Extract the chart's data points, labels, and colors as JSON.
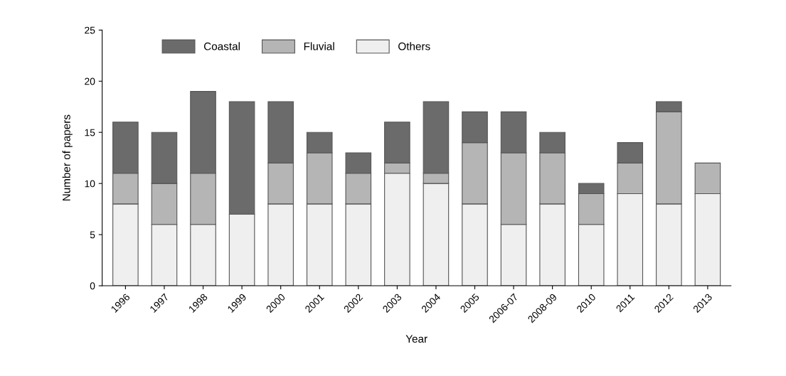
{
  "chart_data": {
    "type": "bar",
    "stacked": true,
    "xlabel": "Year",
    "ylabel": "Number of papers",
    "categories": [
      "1996",
      "1997",
      "1998",
      "1999",
      "2000",
      "2001",
      "2002",
      "2003",
      "2004",
      "2005",
      "2006-07",
      "2008-09",
      "2010",
      "2011",
      "2012",
      "2013"
    ],
    "series": [
      {
        "name": "Others",
        "color": "#efefef",
        "values": [
          8,
          6,
          6,
          7,
          8,
          8,
          8,
          11,
          10,
          8,
          6,
          8,
          6,
          9,
          8,
          9
        ]
      },
      {
        "name": "Fluvial",
        "color": "#b5b5b5",
        "values": [
          3,
          4,
          5,
          0,
          4,
          5,
          3,
          1,
          1,
          6,
          7,
          5,
          3,
          3,
          9,
          3
        ]
      },
      {
        "name": "Coastal",
        "color": "#6b6b6b",
        "values": [
          5,
          5,
          8,
          11,
          6,
          2,
          2,
          4,
          7,
          3,
          4,
          2,
          1,
          2,
          1,
          0
        ]
      }
    ],
    "ylim": [
      0,
      25
    ],
    "yticks": [
      0,
      5,
      10,
      15,
      20,
      25
    ],
    "grid": false,
    "legend": "top left"
  }
}
